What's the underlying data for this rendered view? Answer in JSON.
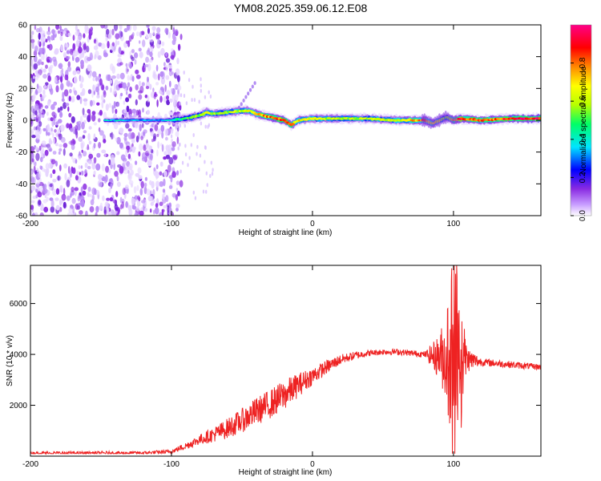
{
  "figure": {
    "title": "YM08.2025.359.06.12.E08",
    "accent_color": "#ee2222"
  },
  "chart_data": [
    {
      "type": "heatmap",
      "name": "spectrogram",
      "xlabel": "Height of straight line (km)",
      "ylabel": "Frequency (Hz)",
      "xlim": [
        -200,
        162
      ],
      "ylim": [
        -60,
        60
      ],
      "x_ticks": [
        -200,
        -100,
        0,
        100
      ],
      "y_ticks": [
        -60,
        -40,
        -20,
        0,
        20,
        40,
        60
      ],
      "colorbar": {
        "label": "Normalized spectral amplitude",
        "ticks": [
          0.0,
          0.2,
          0.4,
          0.6,
          0.8
        ],
        "range": [
          0,
          1
        ],
        "colormap": [
          "#ffffff",
          "#8a2be2",
          "#0000ff",
          "#00e5ff",
          "#00ff66",
          "#b6ff00",
          "#ffff00",
          "#ff8800",
          "#ff0000",
          "#ff0088"
        ]
      },
      "ridge_frequency": {
        "x": [
          -145,
          -110,
          -100,
          -90,
          -80,
          -75,
          -70,
          -60,
          -50,
          -45,
          -40,
          -30,
          -20,
          -15,
          -10,
          0,
          20,
          40,
          60,
          80,
          85,
          90,
          95,
          100,
          105,
          120,
          140,
          160
        ],
        "y": [
          0,
          0,
          0,
          1,
          3,
          5,
          4,
          5,
          6,
          6,
          4,
          2,
          0,
          -3,
          0,
          1,
          1,
          1,
          0,
          0,
          -2,
          0,
          2,
          0,
          1,
          0,
          1,
          1
        ]
      },
      "ridge_amplitude": {
        "x": [
          -145,
          -110,
          -100,
          -90,
          -80,
          -75,
          -70,
          -60,
          -50,
          -45,
          -40,
          -30,
          -20,
          -15,
          -10,
          0,
          20,
          40,
          60,
          80,
          85,
          90,
          95,
          100,
          105,
          120,
          140,
          160
        ],
        "y": [
          0.35,
          0.3,
          0.35,
          0.45,
          0.55,
          0.6,
          0.55,
          0.55,
          0.6,
          0.65,
          0.7,
          0.8,
          0.85,
          0.75,
          0.7,
          0.6,
          0.55,
          0.55,
          0.6,
          0.8,
          0.65,
          0.55,
          0.5,
          0.75,
          0.9,
          0.8,
          0.85,
          0.9
        ]
      }
    },
    {
      "type": "line",
      "name": "snr",
      "xlabel": "Height of straight line (km)",
      "ylabel": "SNR (10 * v/v)",
      "xlim": [
        -200,
        162
      ],
      "ylim": [
        0,
        7500
      ],
      "x_ticks": [
        -200,
        -100,
        0,
        100
      ],
      "y_ticks": [
        2000,
        4000,
        6000
      ],
      "series": [
        {
          "name": "SNR",
          "color": "#ee2222",
          "envelope_x": [
            -200,
            -120,
            -100,
            -90,
            -80,
            -70,
            -60,
            -50,
            -40,
            -30,
            -20,
            -10,
            0,
            10,
            20,
            30,
            40,
            50,
            60,
            70,
            80,
            85,
            90,
            95,
            100,
            105,
            110,
            120,
            130,
            140,
            150,
            162
          ],
          "envelope_y": [
            120,
            120,
            180,
            400,
            650,
            850,
            1100,
            1400,
            1750,
            2050,
            2400,
            2800,
            3150,
            3500,
            3800,
            3950,
            4050,
            4100,
            4100,
            4050,
            4000,
            3950,
            3900,
            3900,
            4000,
            3900,
            3800,
            3700,
            3650,
            3600,
            3550,
            3500
          ],
          "noise_x": [
            -200,
            -100,
            -80,
            -60,
            -40,
            -20,
            0,
            20,
            40,
            80,
            90,
            95,
            100,
            105,
            110,
            120,
            162
          ],
          "noise_y": [
            60,
            80,
            200,
            400,
            550,
            600,
            350,
            200,
            120,
            120,
            900,
            2000,
            2600,
            2200,
            500,
            150,
            120
          ],
          "min_value": 100,
          "max_value": 7500
        }
      ]
    }
  ]
}
